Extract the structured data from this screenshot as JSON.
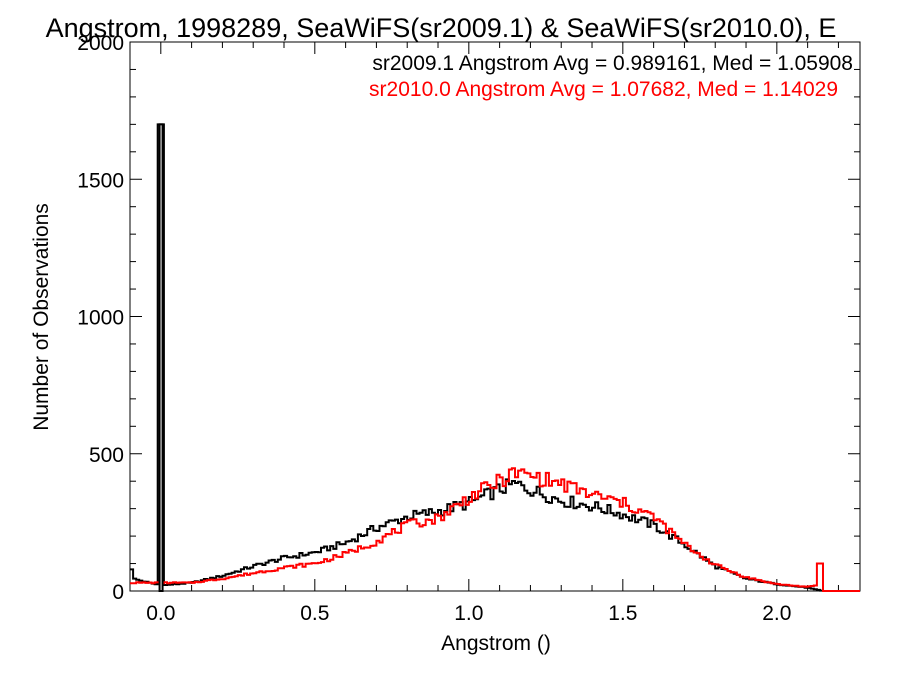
{
  "chart_data": {
    "type": "histogram",
    "title": "Angstrom, 1998289, SeaWiFS(sr2009.1) & SeaWiFS(sr2010.0), E",
    "xlabel": "Angstrom ()",
    "ylabel": "Number of Observations",
    "xlim": [
      -0.1,
      2.27
    ],
    "ylim": [
      0,
      2000
    ],
    "x_ticks": [
      0.0,
      0.5,
      1.0,
      1.5,
      2.0
    ],
    "x_tick_labels": [
      "0.0",
      "0.5",
      "1.0",
      "1.5",
      "2.0"
    ],
    "y_ticks": [
      0,
      500,
      1000,
      1500,
      2000
    ],
    "y_tick_labels": [
      "0",
      "500",
      "1000",
      "1500",
      "2000"
    ],
    "bin_width": 0.01,
    "grid": false,
    "legend_position": "top-right",
    "series": [
      {
        "name": "sr2009.1",
        "label": "sr2009.1 Angstrom Avg = 0.989161, Med = 1.05908",
        "color": "#000000",
        "spike": {
          "x": 0.0,
          "value": 1700
        },
        "points": [
          [
            -0.1,
            120
          ],
          [
            -0.09,
            45
          ],
          [
            0.0,
            20
          ],
          [
            0.1,
            30
          ],
          [
            0.2,
            55
          ],
          [
            0.3,
            90
          ],
          [
            0.4,
            120
          ],
          [
            0.5,
            140
          ],
          [
            0.6,
            175
          ],
          [
            0.7,
            230
          ],
          [
            0.8,
            270
          ],
          [
            0.9,
            290
          ],
          [
            1.0,
            320
          ],
          [
            1.1,
            370
          ],
          [
            1.15,
            390
          ],
          [
            1.2,
            370
          ],
          [
            1.3,
            330
          ],
          [
            1.4,
            310
          ],
          [
            1.5,
            280
          ],
          [
            1.6,
            240
          ],
          [
            1.7,
            170
          ],
          [
            1.8,
            90
          ],
          [
            1.9,
            45
          ],
          [
            2.0,
            25
          ],
          [
            2.1,
            12
          ],
          [
            2.13,
            5
          ],
          [
            2.15,
            0
          ],
          [
            2.27,
            0
          ]
        ]
      },
      {
        "name": "sr2010.0",
        "label": "sr2010.0 Angstrom Avg = 1.07682, Med = 1.14029",
        "color": "#ff0000",
        "spike": {
          "x": 2.14,
          "value": 100
        },
        "points": [
          [
            -0.1,
            30
          ],
          [
            0.0,
            30
          ],
          [
            0.1,
            30
          ],
          [
            0.2,
            45
          ],
          [
            0.3,
            65
          ],
          [
            0.4,
            85
          ],
          [
            0.5,
            100
          ],
          [
            0.6,
            135
          ],
          [
            0.7,
            180
          ],
          [
            0.8,
            240
          ],
          [
            0.9,
            265
          ],
          [
            1.0,
            340
          ],
          [
            1.1,
            400
          ],
          [
            1.15,
            430
          ],
          [
            1.2,
            420
          ],
          [
            1.3,
            390
          ],
          [
            1.4,
            350
          ],
          [
            1.5,
            320
          ],
          [
            1.6,
            270
          ],
          [
            1.7,
            170
          ],
          [
            1.8,
            95
          ],
          [
            1.9,
            50
          ],
          [
            2.0,
            25
          ],
          [
            2.1,
            15
          ],
          [
            2.13,
            20
          ],
          [
            2.15,
            0
          ],
          [
            2.27,
            0
          ]
        ]
      }
    ]
  }
}
